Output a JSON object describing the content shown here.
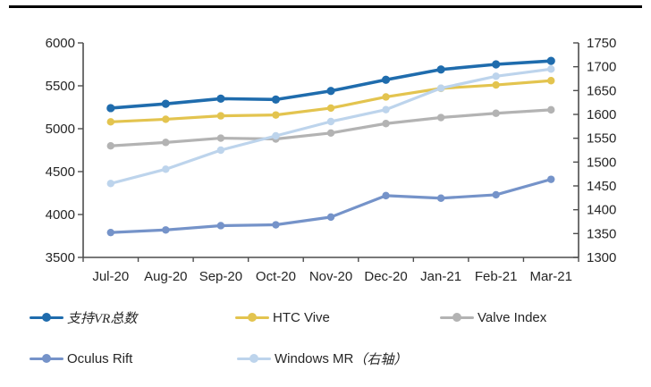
{
  "chart_data": {
    "type": "line",
    "categories": [
      "Jul-20",
      "Aug-20",
      "Sep-20",
      "Oct-20",
      "Nov-20",
      "Dec-20",
      "Jan-21",
      "Feb-21",
      "Mar-21"
    ],
    "series": [
      {
        "name": "支持VR总数",
        "axis": "left",
        "color": "#1F6CAD",
        "line_width": 3.6,
        "marker_r": 4.6,
        "values": [
          5240,
          5290,
          5350,
          5340,
          5440,
          5570,
          5690,
          5750,
          5790
        ]
      },
      {
        "name": "HTC Vive",
        "axis": "left",
        "color": "#E3C44F",
        "line_width": 3.2,
        "marker_r": 4.2,
        "values": [
          5080,
          5110,
          5150,
          5160,
          5240,
          5370,
          5470,
          5510,
          5560
        ]
      },
      {
        "name": "Valve Index",
        "axis": "left",
        "color": "#B3B3B3",
        "line_width": 3.2,
        "marker_r": 4.2,
        "values": [
          4800,
          4840,
          4890,
          4880,
          4950,
          5060,
          5130,
          5180,
          5220
        ]
      },
      {
        "name": "Oculus Rift",
        "axis": "left",
        "color": "#7593C9",
        "line_width": 3.2,
        "marker_r": 4.2,
        "values": [
          3790,
          3820,
          3870,
          3880,
          3970,
          4220,
          4190,
          4230,
          4410
        ]
      },
      {
        "name": "Windows MR（右轴）",
        "axis": "right",
        "color": "#BDD4EC",
        "line_width": 3.2,
        "marker_r": 4.2,
        "values": [
          1455,
          1485,
          1525,
          1555,
          1585,
          1610,
          1655,
          1680,
          1695
        ]
      }
    ],
    "title": "",
    "xlabel": "",
    "ylabel": "",
    "left_axis": {
      "min": 3500,
      "max": 6000,
      "step": 500,
      "ticks": [
        3500,
        4000,
        4500,
        5000,
        5500,
        6000
      ]
    },
    "right_axis": {
      "min": 1300,
      "max": 1750,
      "step": 50,
      "ticks": [
        1300,
        1350,
        1400,
        1450,
        1500,
        1550,
        1600,
        1650,
        1700,
        1750
      ]
    },
    "grid": false,
    "legend_position": "bottom"
  },
  "legend": {
    "items": [
      {
        "id": "zhichi-vr-zongshu",
        "color": "#1F6CAD",
        "parts": [
          {
            "text": "支持VR总数",
            "zh": true
          }
        ]
      },
      {
        "id": "htc-vive",
        "color": "#E3C44F",
        "parts": [
          {
            "text": "HTC Vive",
            "zh": false
          }
        ]
      },
      {
        "id": "valve-index",
        "color": "#B3B3B3",
        "parts": [
          {
            "text": "Valve Index",
            "zh": false
          }
        ]
      },
      {
        "id": "oculus-rift",
        "color": "#7593C9",
        "parts": [
          {
            "text": "Oculus Rift",
            "zh": false
          }
        ]
      },
      {
        "id": "windows-mr",
        "color": "#BDD4EC",
        "parts": [
          {
            "text": "Windows MR",
            "zh": false
          },
          {
            "text": "（右轴）",
            "zh": true
          }
        ]
      }
    ]
  },
  "decor": {
    "top_rule_color": "#000000"
  }
}
